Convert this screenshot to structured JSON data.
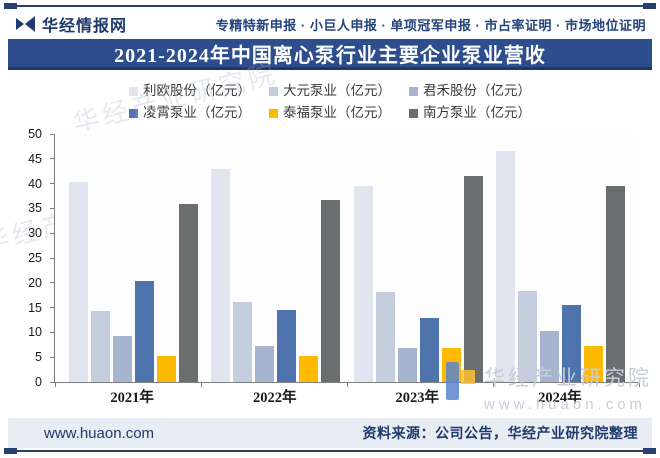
{
  "header": {
    "brand": "华经情报网",
    "services": "专精特新申报 · 小巨人申报 · 单项冠军申报 · 市占率证明 · 市场地位证明"
  },
  "title": "2021-2024年中国离心泵行业主要企业泵业营收",
  "chart_data": {
    "type": "bar",
    "title": "2021-2024年中国离心泵行业主要企业泵业营收",
    "categories": [
      "2021年",
      "2022年",
      "2023年",
      "2024年"
    ],
    "series": [
      {
        "name": "利欧股份（亿元）",
        "color": "#e0e5ef",
        "values": [
          40.3,
          43.0,
          39.5,
          46.5
        ]
      },
      {
        "name": "大元泵业（亿元）",
        "color": "#c4cdde",
        "values": [
          14.4,
          16.2,
          18.2,
          18.4
        ]
      },
      {
        "name": "君禾股份（亿元）",
        "color": "#a6b4cf",
        "values": [
          9.3,
          7.2,
          6.9,
          10.2
        ]
      },
      {
        "name": "凌霄泵业（亿元）",
        "color": "#4f73ac",
        "values": [
          20.4,
          14.6,
          13.0,
          15.5
        ]
      },
      {
        "name": "泰福泵业（亿元）",
        "color": "#ffb900",
        "values": [
          5.3,
          5.3,
          6.9,
          7.3
        ]
      },
      {
        "name": "南方泵业（亿元）",
        "color": "#696e6f",
        "values": [
          35.8,
          36.7,
          41.6,
          39.5
        ]
      }
    ],
    "ylim": [
      0,
      50
    ],
    "ytick_step": 5,
    "grid": false,
    "legend_position": "top"
  },
  "watermarks": {
    "diagonal_text": "华经产业研究院",
    "corner_title": "华经产业研究院",
    "corner_url": "www.huaon.com"
  },
  "footer": {
    "site": "www.huaon.com",
    "source": "资料来源：公司公告，华经产业研究院整理"
  },
  "colors": {
    "brand_navy": "#2e4d8c",
    "footer_bg": "#e8ecf3",
    "axis": "#7f7f7f"
  }
}
